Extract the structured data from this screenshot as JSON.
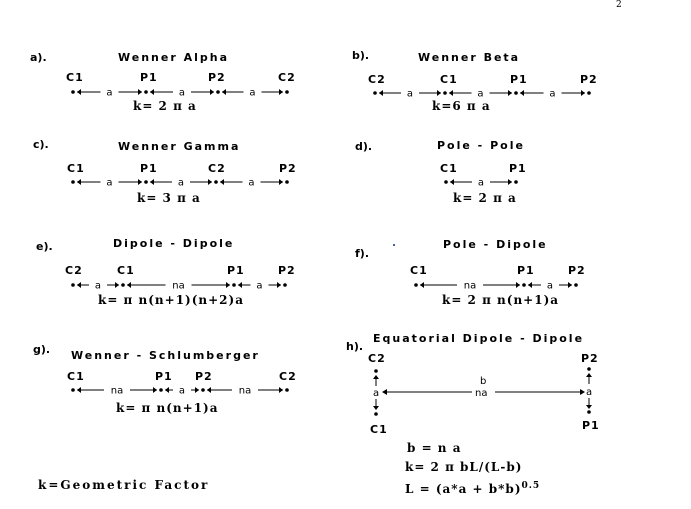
{
  "page_number": "2",
  "panels": {
    "a": {
      "letter": "a).",
      "title": "Wenner Alpha",
      "labels": [
        "C1",
        "P1",
        "P2",
        "C2"
      ],
      "spacings": [
        "a",
        "a",
        "a"
      ],
      "k_formula": "k= 2 π a"
    },
    "b": {
      "letter": "b).",
      "title": "Wenner Beta",
      "labels": [
        "C2",
        "C1",
        "P1",
        "P2"
      ],
      "spacings": [
        "a",
        "a",
        "a"
      ],
      "k_formula": "k=6 π a"
    },
    "c": {
      "letter": "c).",
      "title": "Wenner Gamma",
      "labels": [
        "C1",
        "P1",
        "C2",
        "P2"
      ],
      "spacings": [
        "a",
        "a",
        "a"
      ],
      "k_formula": "k= 3 π a"
    },
    "d": {
      "letter": "d).",
      "title": "Pole - Pole",
      "labels": [
        "C1",
        "P1"
      ],
      "spacings": [
        "a"
      ],
      "k_formula": "k= 2 π a"
    },
    "e": {
      "letter": "e).",
      "title": "Dipole - Dipole",
      "labels": [
        "C2",
        "C1",
        "P1",
        "P2"
      ],
      "spacings": [
        "a",
        "na",
        "a"
      ],
      "k_formula": "k= π n(n+1)(n+2)a"
    },
    "f": {
      "letter": "f).",
      "title": "Pole - Dipole",
      "labels": [
        "C1",
        "P1",
        "P2"
      ],
      "spacings": [
        "na",
        "a"
      ],
      "k_formula": "k= 2 π n(n+1)a"
    },
    "g": {
      "letter": "g).",
      "title": "Wenner - Schlumberger",
      "labels": [
        "C1",
        "P1",
        "P2",
        "C2"
      ],
      "spacings": [
        "na",
        "a",
        "na"
      ],
      "k_formula": "k= π n(n+1)a"
    },
    "h": {
      "letter": "h).",
      "title": "Equatorial Dipole - Dipole",
      "top_labels": [
        "C2",
        "P2"
      ],
      "bottom_labels": [
        "C1",
        "P1"
      ],
      "side_spacing": "a",
      "span_top": "b",
      "span_bottom": "na",
      "eq1": "b = n a",
      "eq2": "k= 2 π bL/(L-b)",
      "eq3_main": "L = (a*a + b*b)",
      "eq3_exp": "0.5"
    }
  },
  "footer": "k=Geometric Factor"
}
